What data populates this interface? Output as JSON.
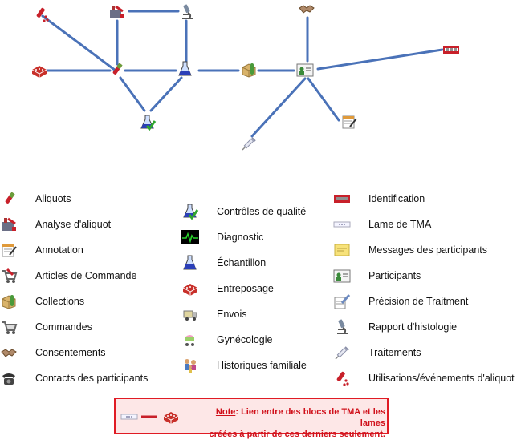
{
  "legend": {
    "col1": [
      {
        "label": "Aliquots",
        "icon": "aliquot-tube-icon"
      },
      {
        "label": "Analyse d'aliquot",
        "icon": "aliquot-analysis-icon"
      },
      {
        "label": "Annotation",
        "icon": "annotation-notepad-icon"
      },
      {
        "label": "Articles de Commande",
        "icon": "order-item-cart-icon"
      },
      {
        "label": "Collections",
        "icon": "collection-box-icon"
      },
      {
        "label": "Commandes",
        "icon": "shopping-cart-icon"
      },
      {
        "label": "Consentements",
        "icon": "handshake-icon"
      },
      {
        "label": "Contacts des participants",
        "icon": "telephone-icon"
      }
    ],
    "col2": [
      {
        "label": "Contrôles de qualité",
        "icon": "quality-control-flask-icon"
      },
      {
        "label": "Diagnostic",
        "icon": "diagnostic-waveform-icon"
      },
      {
        "label": "Échantillon",
        "icon": "sample-flask-icon"
      },
      {
        "label": "Entreposage",
        "icon": "storage-box-icon"
      },
      {
        "label": "Envois",
        "icon": "shipment-truck-icon"
      },
      {
        "label": "Gynécologie",
        "icon": "gynecology-stroller-icon"
      },
      {
        "label": "Historiques familiale",
        "icon": "family-history-icon"
      }
    ],
    "col3": [
      {
        "label": "Identification",
        "icon": "identification-badge-icon"
      },
      {
        "label": "Lame de TMA",
        "icon": "tma-slide-icon"
      },
      {
        "label": "Messages des participants",
        "icon": "message-note-icon"
      },
      {
        "label": "Participants",
        "icon": "participant-card-icon"
      },
      {
        "label": "Précision de Traitment",
        "icon": "treatment-detail-icon"
      },
      {
        "label": "Rapport d'histologie",
        "icon": "microscope-icon"
      },
      {
        "label": "Traitements",
        "icon": "syringe-icon"
      },
      {
        "label": "Utilisations/événements d'aliquot",
        "icon": "aliquot-use-icon"
      }
    ]
  },
  "note": {
    "prefix": "Note",
    "line1": ": Lien entre des blocs de TMA et les lames",
    "line2": "créées à partir de ces derniers seulement."
  },
  "colors": {
    "connector": "#4a72b8",
    "note_border": "#e01b24",
    "note_bg": "#fde7e7",
    "note_text": "#d0101a"
  }
}
